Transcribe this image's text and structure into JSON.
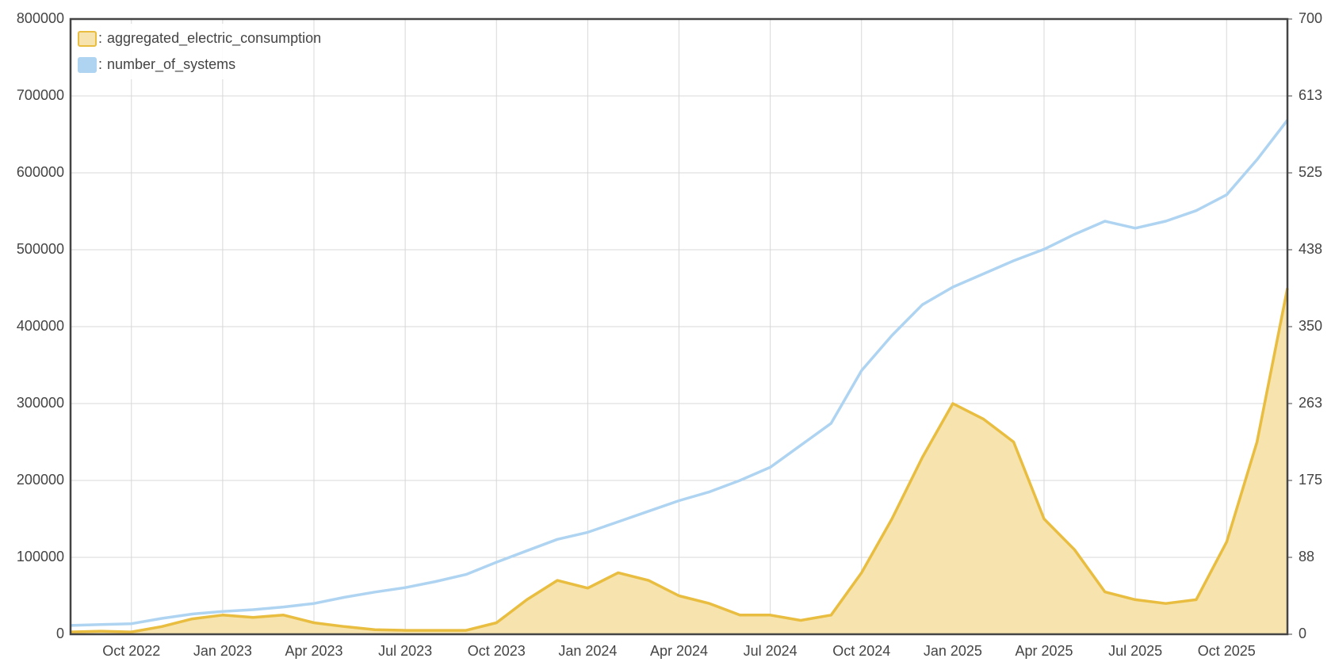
{
  "chart_data": {
    "type": "line",
    "legend_separator": ":",
    "x": [
      "2022-08",
      "2022-09",
      "2022-10",
      "2022-11",
      "2022-12",
      "2023-01",
      "2023-02",
      "2023-03",
      "2023-04",
      "2023-05",
      "2023-06",
      "2023-07",
      "2023-08",
      "2023-09",
      "2023-10",
      "2023-11",
      "2023-12",
      "2024-01",
      "2024-02",
      "2024-03",
      "2024-04",
      "2024-05",
      "2024-06",
      "2024-07",
      "2024-08",
      "2024-09",
      "2024-10",
      "2024-11",
      "2024-12",
      "2025-01",
      "2025-02",
      "2025-03",
      "2025-04",
      "2025-05",
      "2025-06",
      "2025-07",
      "2025-08",
      "2025-09",
      "2025-10",
      "2025-11",
      "2025-12"
    ],
    "xticks": [
      {
        "value": "2022-10",
        "label": "Oct 2022"
      },
      {
        "value": "2023-01",
        "label": "Jan 2023"
      },
      {
        "value": "2023-04",
        "label": "Apr 2023"
      },
      {
        "value": "2023-07",
        "label": "Jul 2023"
      },
      {
        "value": "2023-10",
        "label": "Oct 2023"
      },
      {
        "value": "2024-01",
        "label": "Jan 2024"
      },
      {
        "value": "2024-04",
        "label": "Apr 2024"
      },
      {
        "value": "2024-07",
        "label": "Jul 2024"
      },
      {
        "value": "2024-10",
        "label": "Oct 2024"
      },
      {
        "value": "2025-01",
        "label": "Jan 2025"
      },
      {
        "value": "2025-04",
        "label": "Apr 2025"
      },
      {
        "value": "2025-07",
        "label": "Jul 2025"
      },
      {
        "value": "2025-10",
        "label": "Oct 2025"
      }
    ],
    "ylim": [
      0,
      800000
    ],
    "yticks": [
      0,
      100000,
      200000,
      300000,
      400000,
      500000,
      600000,
      700000,
      800000
    ],
    "y2lim": [
      0,
      700
    ],
    "y2ticks": [
      0,
      {
        "value": 87.5,
        "label": "88"
      },
      175,
      {
        "value": 262.5,
        "label": "263"
      },
      350,
      {
        "value": 437.5,
        "label": "438"
      },
      525,
      {
        "value": 612.5,
        "label": "613"
      },
      700
    ],
    "grid": true,
    "legend": "upper left",
    "series": [
      {
        "name": "aggregated_electric_consumption",
        "color": "#e8bd40",
        "fill": "#f7e3ad",
        "area": true,
        "values": [
          3000,
          4000,
          3000,
          10000,
          20000,
          25000,
          22000,
          25000,
          15000,
          10000,
          6000,
          5000,
          5000,
          5000,
          15000,
          45000,
          70000,
          60000,
          80000,
          70000,
          50000,
          40000,
          25000,
          25000,
          18000,
          25000,
          80000,
          150000,
          230000,
          300000,
          280000,
          250000,
          150000,
          110000,
          55000,
          45000,
          40000,
          45000,
          120000,
          250000,
          450000
        ]
      },
      {
        "name": "number_of_systems",
        "color": "#aed4f2",
        "axis": "y2",
        "values": [
          10,
          11,
          12,
          18,
          23,
          26,
          28,
          31,
          35,
          42,
          48,
          53,
          60,
          68,
          82,
          95,
          108,
          116,
          128,
          140,
          152,
          162,
          175,
          190,
          215,
          240,
          300,
          340,
          375,
          395,
          410,
          425,
          438,
          455,
          470,
          462,
          470,
          482,
          500,
          540,
          585
        ]
      }
    ]
  }
}
